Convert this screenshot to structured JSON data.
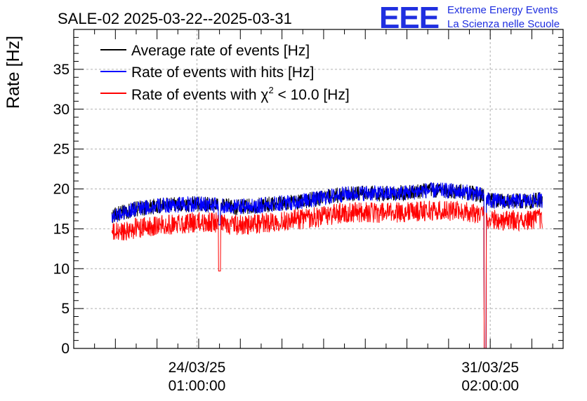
{
  "chart_data": {
    "type": "line",
    "title": "SALE-02 2025-03-22--2025-03-31",
    "ylabel": "Rate [Hz]",
    "ylim": [
      0,
      40
    ],
    "y_ticks": [
      "0",
      "5",
      "10",
      "15",
      "20",
      "25",
      "30",
      "35"
    ],
    "x_ticks": [
      {
        "date": "24/03/25",
        "time": "01:00:00",
        "t": "2025-03-24T01:00:00"
      },
      {
        "date": "31/03/25",
        "time": "02:00:00",
        "t": "2025-03-31T02:00:00"
      }
    ],
    "xlim": [
      "2025-03-21T02:00:00",
      "2025-04-01T20:00:00"
    ],
    "grid": true,
    "legend_position": "top-left",
    "series": [
      {
        "name": "Average rate of events [Hz]",
        "color": "#000000",
        "x": [
          "2025-03-22T00:00:00",
          "2025-03-22T12:00:00",
          "2025-03-23T00:00:00",
          "2025-03-23T12:00:00",
          "2025-03-24T00:00:00",
          "2025-03-24T12:00:00",
          "2025-03-25T00:00:00",
          "2025-03-25T12:00:00",
          "2025-03-26T00:00:00",
          "2025-03-26T12:00:00",
          "2025-03-27T00:00:00",
          "2025-03-27T12:00:00",
          "2025-03-28T00:00:00",
          "2025-03-28T12:00:00",
          "2025-03-29T00:00:00",
          "2025-03-29T12:00:00",
          "2025-03-30T00:00:00",
          "2025-03-30T12:00:00",
          "2025-03-30T22:00:00",
          "2025-03-31T00:00:00",
          "2025-03-31T12:00:00",
          "2025-04-01T00:00:00",
          "2025-04-01T08:00:00"
        ],
        "values": [
          16.6,
          17.4,
          17.8,
          18.0,
          18.1,
          18.0,
          17.7,
          17.9,
          18.2,
          18.4,
          18.8,
          19.3,
          19.5,
          19.4,
          19.5,
          19.8,
          19.8,
          19.6,
          19.2,
          18.6,
          18.4,
          18.5,
          18.6
        ]
      },
      {
        "name": "Rate of events with hits [Hz]",
        "color": "#0000ff",
        "x": [
          "2025-03-22T00:00:00",
          "2025-03-22T12:00:00",
          "2025-03-23T00:00:00",
          "2025-03-23T12:00:00",
          "2025-03-24T00:00:00",
          "2025-03-24T12:00:00",
          "2025-03-25T00:00:00",
          "2025-03-25T12:00:00",
          "2025-03-26T00:00:00",
          "2025-03-26T12:00:00",
          "2025-03-27T00:00:00",
          "2025-03-27T12:00:00",
          "2025-03-28T00:00:00",
          "2025-03-28T12:00:00",
          "2025-03-29T00:00:00",
          "2025-03-29T12:00:00",
          "2025-03-30T00:00:00",
          "2025-03-30T12:00:00",
          "2025-03-30T22:00:00",
          "2025-03-31T00:00:00",
          "2025-03-31T12:00:00",
          "2025-04-01T00:00:00",
          "2025-04-01T08:00:00"
        ],
        "values": [
          16.6,
          17.4,
          17.8,
          18.0,
          18.1,
          18.0,
          17.7,
          17.9,
          18.2,
          18.4,
          18.8,
          19.3,
          19.5,
          19.4,
          19.5,
          19.8,
          19.8,
          19.6,
          19.2,
          18.6,
          18.4,
          18.5,
          18.6
        ]
      },
      {
        "name": "Rate of events with χ² < 10.0 [Hz]",
        "color": "#ff0000",
        "x": [
          "2025-03-22T00:00:00",
          "2025-03-22T12:00:00",
          "2025-03-23T00:00:00",
          "2025-03-23T12:00:00",
          "2025-03-24T00:00:00",
          "2025-03-24T12:00:00",
          "2025-03-25T00:00:00",
          "2025-03-25T12:00:00",
          "2025-03-26T00:00:00",
          "2025-03-26T12:00:00",
          "2025-03-27T00:00:00",
          "2025-03-27T12:00:00",
          "2025-03-28T00:00:00",
          "2025-03-28T12:00:00",
          "2025-03-29T00:00:00",
          "2025-03-29T12:00:00",
          "2025-03-30T00:00:00",
          "2025-03-30T12:00:00",
          "2025-03-30T22:00:00",
          "2025-03-31T00:00:00",
          "2025-03-31T12:00:00",
          "2025-04-01T00:00:00",
          "2025-04-01T08:00:00"
        ],
        "values": [
          14.4,
          15.0,
          15.4,
          15.6,
          15.8,
          15.8,
          15.4,
          15.6,
          16.0,
          16.2,
          16.5,
          17.0,
          17.1,
          17.0,
          17.1,
          17.3,
          17.3,
          17.2,
          16.8,
          16.2,
          16.0,
          16.1,
          16.3
        ]
      }
    ],
    "dips": [
      {
        "x": "2025-03-24T14:00:00",
        "red_min": 9.7,
        "blue_min": 15.5
      },
      {
        "x": "2025-03-30T23:00:00",
        "red_min": 0.0,
        "blue_min": 0.0
      }
    ]
  },
  "legend": [
    {
      "label": "Average rate of events [Hz]",
      "color": "#000000"
    },
    {
      "label": "Rate of events with hits [Hz]",
      "color": "#0000ff"
    },
    {
      "label_prefix": "Rate of events with χ",
      "label_sup": "2",
      "label_suffix": " < 10.0 [Hz]",
      "color": "#ff0000"
    }
  ],
  "brand": {
    "logo": "EEE",
    "line1": "Extreme Energy Events",
    "line2": "La Scienza nelle Scuole"
  }
}
